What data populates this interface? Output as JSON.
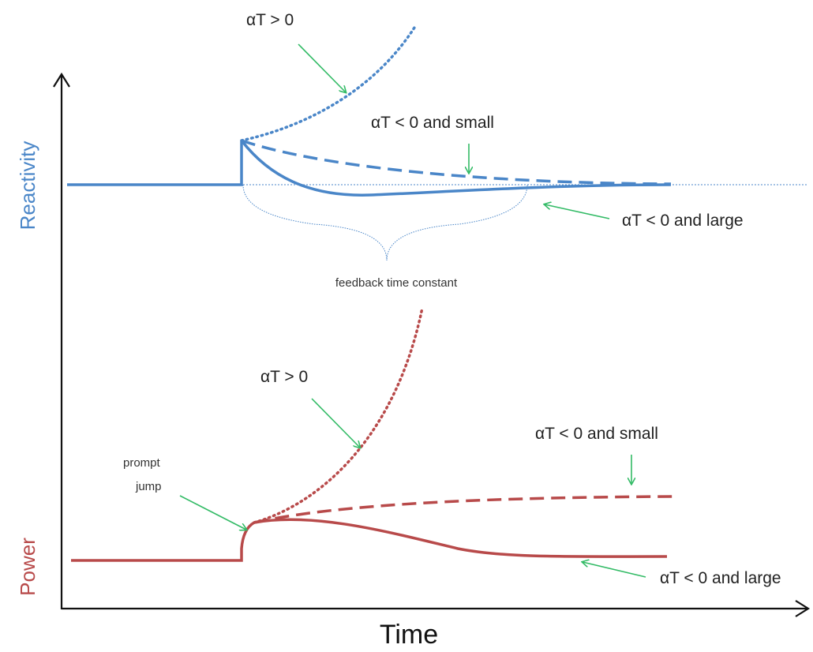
{
  "axes": {
    "x_label": "Time",
    "y_label_top": "Reactivity",
    "y_label_bottom": "Power"
  },
  "colors": {
    "reactivity": "#4a86c8",
    "power": "#b84a4a",
    "arrow": "#33bb66",
    "axis": "#111111"
  },
  "reactivity_labels": {
    "positive": "αT > 0",
    "negative_small": "αT < 0 and small",
    "negative_large": "αT < 0 and large",
    "feedback": "feedback time constant"
  },
  "power_labels": {
    "positive": "αT > 0",
    "negative_small": "αT < 0 and small",
    "negative_large": "αT < 0 and large",
    "prompt_jump_line1": "prompt",
    "prompt_jump_line2": "jump"
  }
}
